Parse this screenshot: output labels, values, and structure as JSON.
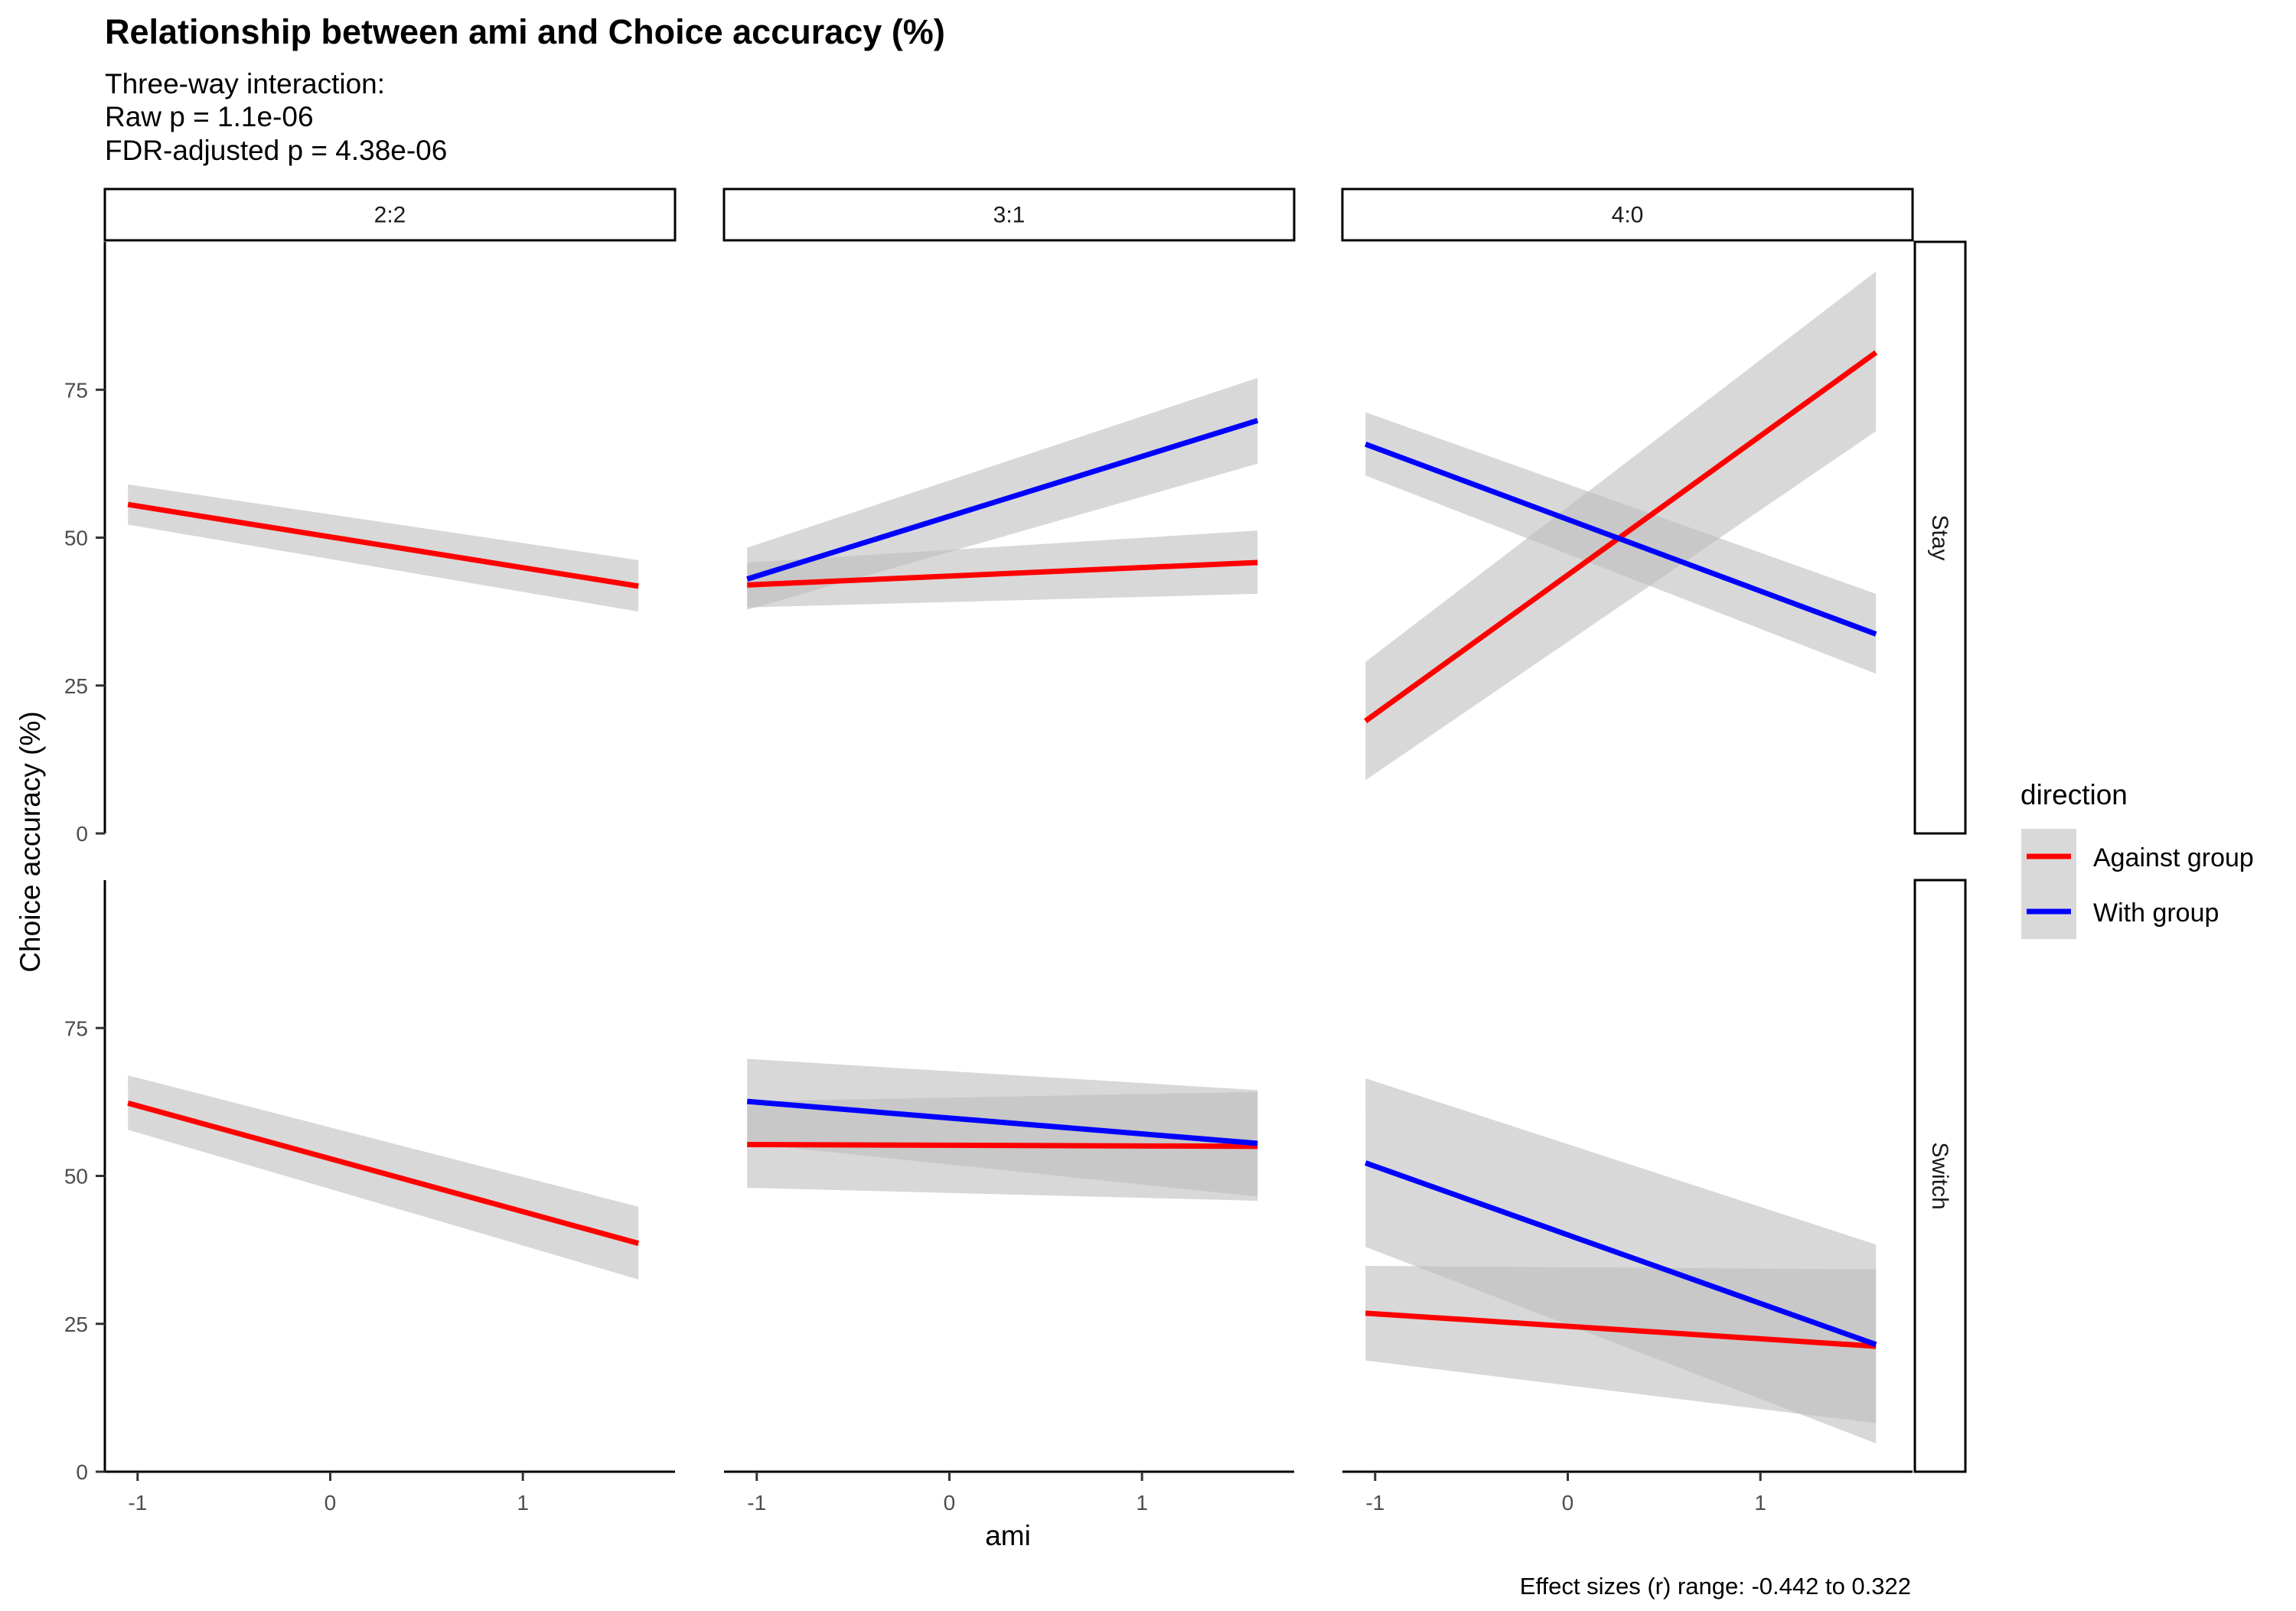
{
  "chart_data": {
    "type": "line",
    "title": "Relationship between ami and Choice accuracy (%)",
    "subtitle": [
      "Three-way interaction:",
      "Raw p = 1.1e-06",
      "FDR-adjusted p = 4.38e-06"
    ],
    "xlabel": "ami",
    "ylabel": "Choice accuracy (%)",
    "caption": "Effect sizes (r) range: -0.442 to 0.322",
    "xlim": [
      -1.17,
      1.79
    ],
    "ylim": [
      0,
      100
    ],
    "x_ticks": [
      -1,
      0,
      1
    ],
    "x_tick_labels": [
      "-1",
      "0",
      "1"
    ],
    "y_ticks": [
      0,
      25,
      50,
      75
    ],
    "y_tick_labels": [
      "0",
      "25",
      "50",
      "75"
    ],
    "grid": false,
    "legend": {
      "title": "direction",
      "position": "right",
      "entries": [
        {
          "label": "Against group",
          "color": "#ff0000"
        },
        {
          "label": "With group",
          "color": "#0000ff"
        }
      ]
    },
    "band_color": "#bebebe",
    "col_facets": [
      "2:2",
      "3:1",
      "4:0"
    ],
    "row_facets": [
      "Stay",
      "Switch"
    ],
    "panels": [
      {
        "col": "2:2",
        "row": "Stay",
        "series": [
          {
            "name": "Against group",
            "color": "#ff0000",
            "x": [
              -1.05,
              1.6
            ],
            "y": [
              55.6,
              41.8
            ],
            "lower": [
              52.2,
              37.5
            ],
            "upper": [
              59.0,
              46.2
            ]
          }
        ]
      },
      {
        "col": "3:1",
        "row": "Stay",
        "series": [
          {
            "name": "Against group",
            "color": "#ff0000",
            "x": [
              -1.05,
              1.6
            ],
            "y": [
              42.0,
              45.8
            ],
            "lower": [
              38.2,
              40.5
            ],
            "upper": [
              45.8,
              51.2
            ]
          },
          {
            "name": "With group",
            "color": "#0000ff",
            "x": [
              -1.05,
              1.6
            ],
            "y": [
              43.0,
              69.8
            ],
            "lower": [
              37.8,
              62.5
            ],
            "upper": [
              48.3,
              77.0
            ]
          }
        ]
      },
      {
        "col": "4:0",
        "row": "Stay",
        "series": [
          {
            "name": "Against group",
            "color": "#ff0000",
            "x": [
              -1.05,
              1.6
            ],
            "y": [
              19.0,
              81.3
            ],
            "lower": [
              9.0,
              68.0
            ],
            "upper": [
              29.0,
              95.0
            ]
          },
          {
            "name": "With group",
            "color": "#0000ff",
            "x": [
              -1.05,
              1.6
            ],
            "y": [
              65.8,
              33.7
            ],
            "lower": [
              60.5,
              27.0
            ],
            "upper": [
              71.2,
              40.5
            ]
          }
        ]
      },
      {
        "col": "2:2",
        "row": "Switch",
        "series": [
          {
            "name": "Against group",
            "color": "#ff0000",
            "x": [
              -1.05,
              1.6
            ],
            "y": [
              62.3,
              38.6
            ],
            "lower": [
              57.8,
              32.5
            ],
            "upper": [
              67.0,
              44.8
            ]
          }
        ]
      },
      {
        "col": "3:1",
        "row": "Switch",
        "series": [
          {
            "name": "Against group",
            "color": "#ff0000",
            "x": [
              -1.05,
              1.6
            ],
            "y": [
              55.3,
              55.0
            ],
            "lower": [
              48.0,
              45.8
            ],
            "upper": [
              62.6,
              64.2
            ]
          },
          {
            "name": "With group",
            "color": "#0000ff",
            "x": [
              -1.05,
              1.6
            ],
            "y": [
              62.6,
              55.5
            ],
            "lower": [
              55.5,
              46.5
            ],
            "upper": [
              69.8,
              64.5
            ]
          }
        ]
      },
      {
        "col": "4:0",
        "row": "Switch",
        "series": [
          {
            "name": "Against group",
            "color": "#ff0000",
            "x": [
              -1.05,
              1.6
            ],
            "y": [
              26.8,
              21.2
            ],
            "lower": [
              18.8,
              8.2
            ],
            "upper": [
              34.8,
              34.2
            ]
          },
          {
            "name": "With group",
            "color": "#0000ff",
            "x": [
              -1.05,
              1.6
            ],
            "y": [
              52.2,
              21.5
            ],
            "lower": [
              38.0,
              4.8
            ],
            "upper": [
              66.5,
              38.4
            ]
          }
        ]
      }
    ]
  }
}
